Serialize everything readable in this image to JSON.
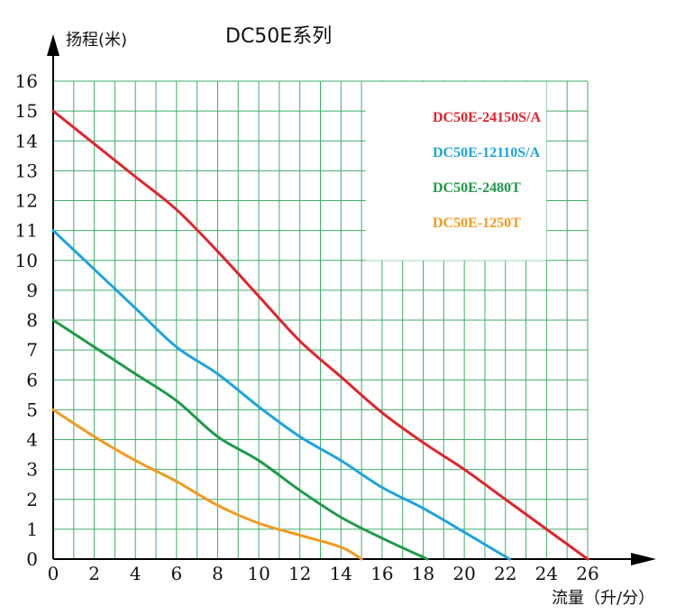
{
  "chart_data": {
    "type": "line",
    "title": "DC50E系列",
    "xlabel": "流量（升/分）",
    "ylabel": "扬程(米)",
    "xlim": [
      0,
      26
    ],
    "ylim": [
      0,
      16
    ],
    "x_ticks": [
      0,
      2,
      4,
      6,
      8,
      10,
      12,
      14,
      16,
      18,
      20,
      22,
      24,
      26
    ],
    "y_ticks": [
      0,
      1,
      2,
      3,
      4,
      5,
      6,
      7,
      8,
      9,
      10,
      11,
      12,
      13,
      14,
      15,
      16
    ],
    "grid": true,
    "legend_position": "top-right",
    "series": [
      {
        "name": "DC50E-24150S/A",
        "color": "#e3232b",
        "x": [
          0,
          2,
          4,
          6,
          8,
          10,
          12,
          14,
          16,
          18,
          20,
          22,
          24,
          26
        ],
        "y": [
          15.0,
          13.9,
          12.8,
          11.7,
          10.3,
          8.8,
          7.3,
          6.1,
          4.9,
          3.9,
          3.0,
          2.0,
          1.0,
          0.0
        ]
      },
      {
        "name": "DC50E-12110S/A",
        "color": "#1ea3e0",
        "x": [
          0,
          2,
          4,
          6,
          8,
          10,
          12,
          14,
          16,
          18,
          20,
          22.2
        ],
        "y": [
          11.0,
          9.7,
          8.4,
          7.1,
          6.2,
          5.1,
          4.1,
          3.3,
          2.4,
          1.7,
          0.9,
          0.0
        ]
      },
      {
        "name": "DC50E-2480T",
        "color": "#1f9a49",
        "x": [
          0,
          2,
          4,
          6,
          8,
          10,
          12,
          14,
          16,
          18.2
        ],
        "y": [
          8.0,
          7.1,
          6.2,
          5.3,
          4.1,
          3.3,
          2.3,
          1.4,
          0.7,
          0.0
        ]
      },
      {
        "name": "DC50E-1250T",
        "color": "#f39a1e",
        "x": [
          0,
          2,
          4,
          6,
          8,
          10,
          12,
          14,
          15
        ],
        "y": [
          5.0,
          4.1,
          3.3,
          2.6,
          1.8,
          1.2,
          0.8,
          0.4,
          0.0
        ]
      }
    ]
  }
}
